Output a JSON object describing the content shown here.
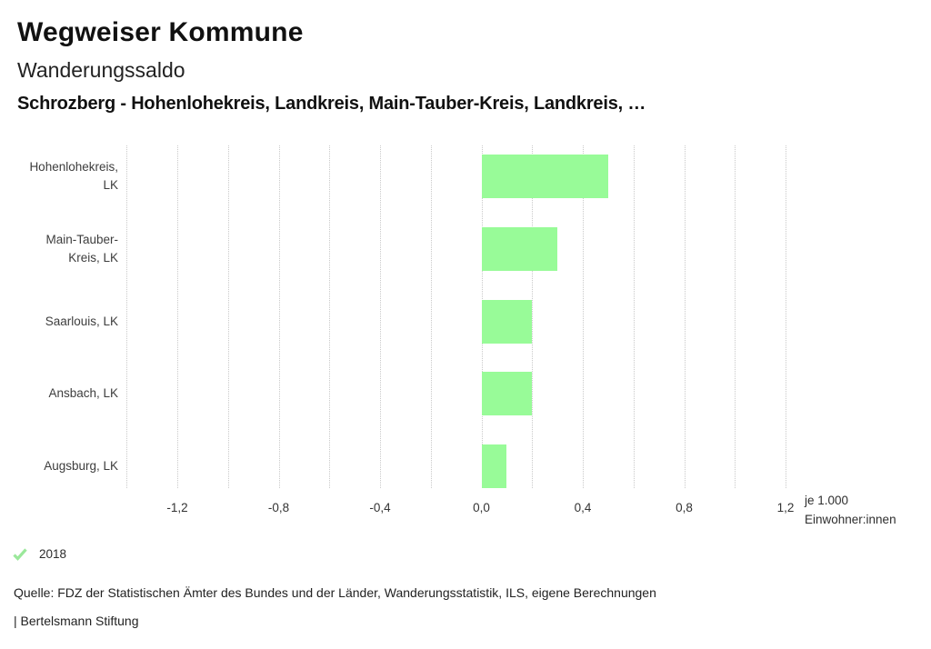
{
  "header": {
    "title": "Wegweiser Kommune",
    "subtitle": "Wanderungssaldo",
    "filter_line": "Schrozberg - Hohenlohekreis, Landkreis, Main-Tauber-Kreis, Landkreis, …"
  },
  "chart_data": {
    "type": "bar",
    "orientation": "horizontal",
    "title": "Wanderungssaldo",
    "series_label": "2018",
    "categories": [
      "Hohenlohekreis, LK",
      "Main-Tauber-Kreis, LK",
      "Saarlouis, LK",
      "Ansbach, LK",
      "Augsburg, LK"
    ],
    "category_label_lines": [
      [
        "Hohenlohekreis,",
        "LK"
      ],
      [
        "Main-Tauber-",
        "Kreis, LK"
      ],
      [
        "Saarlouis, LK"
      ],
      [
        "Ansbach, LK"
      ],
      [
        "Augsburg, LK"
      ]
    ],
    "values": [
      0.5,
      0.3,
      0.2,
      0.2,
      0.1
    ],
    "xlim": [
      -1.4,
      1.2
    ],
    "gridline_step": 0.2,
    "grid": true,
    "x_ticks": [
      -1.2,
      -0.8,
      -0.4,
      0.0,
      0.4,
      0.8,
      1.2
    ],
    "x_tick_labels": [
      "-1,2",
      "-0,8",
      "-0,4",
      "0,0",
      "0,4",
      "0,8",
      "1,2"
    ],
    "xlabel": "je 1.000 Einwohner:innen",
    "unit_label_lines": [
      "je 1.000",
      "Einwohner:innen"
    ],
    "bar_color": "#98fb98",
    "gridline_color": "#c9c9c9"
  },
  "legend": {
    "year": "2018",
    "check_color": "#9be89b"
  },
  "footer": {
    "source": "Quelle: FDZ der Statistischen Ämter des Bundes und der Länder, Wanderungsstatistik, ILS, eigene Berechnungen",
    "branding": "| Bertelsmann Stiftung"
  }
}
